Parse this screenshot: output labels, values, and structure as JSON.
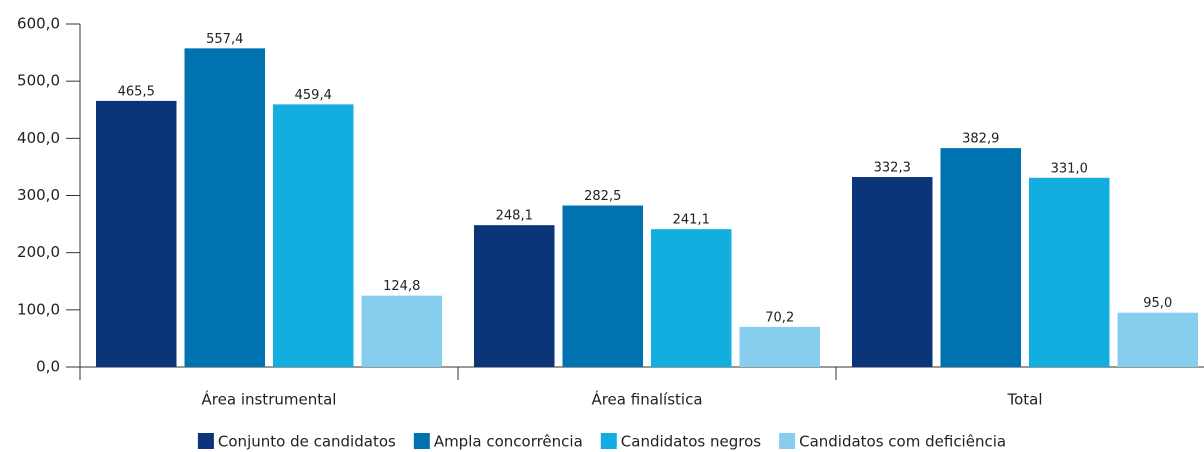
{
  "chart_data": {
    "type": "bar",
    "categories": [
      "Área instrumental",
      "Área finalística",
      "Total"
    ],
    "series": [
      {
        "name": "Conjunto de candidatos",
        "color": "#0a3579",
        "values": [
          465.5,
          248.1,
          332.3
        ],
        "value_labels": [
          "465,5",
          "248,1",
          "332,3"
        ]
      },
      {
        "name": "Ampla concorrência",
        "color": "#0072b0",
        "values": [
          557.4,
          282.5,
          382.9
        ],
        "value_labels": [
          "557,4",
          "282,5",
          "382,9"
        ]
      },
      {
        "name": "Candidatos negros",
        "color": "#12aee0",
        "values": [
          459.4,
          241.1,
          331.0
        ],
        "value_labels": [
          "459,4",
          "241,1",
          "331,0"
        ]
      },
      {
        "name": "Candidatos com deficiência",
        "color": "#86cdee",
        "values": [
          124.8,
          70.2,
          95.0
        ],
        "value_labels": [
          "124,8",
          "70,2",
          "95,0"
        ]
      }
    ],
    "ylim": [
      0,
      600
    ],
    "yticks": [
      {
        "value": 0,
        "label": "0,0"
      },
      {
        "value": 100,
        "label": "100,0"
      },
      {
        "value": 200,
        "label": "200,0"
      },
      {
        "value": 300,
        "label": "300,0"
      },
      {
        "value": 400,
        "label": "400,0"
      },
      {
        "value": 500,
        "label": "500,0"
      },
      {
        "value": 600,
        "label": "600,0"
      }
    ],
    "grid": false,
    "legend": "bottom"
  }
}
